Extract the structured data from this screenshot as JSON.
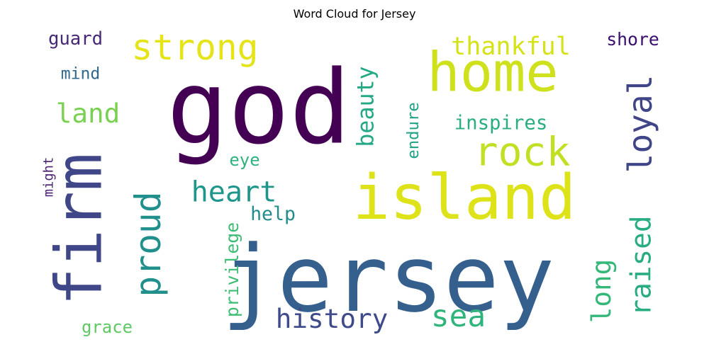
{
  "title": "Word Cloud for Jersey",
  "words": [
    {
      "text": "jersey",
      "color": "#35608d"
    },
    {
      "text": "god",
      "color": "#440154"
    },
    {
      "text": "home",
      "color": "#cfe11c"
    },
    {
      "text": "island",
      "color": "#dde318"
    },
    {
      "text": "firm",
      "color": "#3f4789"
    },
    {
      "text": "rock",
      "color": "#c2df23"
    },
    {
      "text": "strong",
      "color": "#e5e419"
    },
    {
      "text": "proud",
      "color": "#21908d"
    },
    {
      "text": "loyal",
      "color": "#404588"
    },
    {
      "text": "sea",
      "color": "#2fb47c"
    },
    {
      "text": "thankful",
      "color": "#d5e21a"
    },
    {
      "text": "heart",
      "color": "#1f968b"
    },
    {
      "text": "raised",
      "color": "#27ad81"
    },
    {
      "text": "history",
      "color": "#3e4a89"
    },
    {
      "text": "land",
      "color": "#7ad151"
    },
    {
      "text": "beauty",
      "color": "#22a884"
    },
    {
      "text": "long",
      "color": "#35b779"
    },
    {
      "text": "shore",
      "color": "#3b0f70"
    },
    {
      "text": "guard",
      "color": "#482878"
    },
    {
      "text": "inspires",
      "color": "#29af7f"
    },
    {
      "text": "mind",
      "color": "#31688e"
    },
    {
      "text": "endure",
      "color": "#1fa187"
    },
    {
      "text": "eye",
      "color": "#2db27d"
    },
    {
      "text": "might",
      "color": "#481f70"
    },
    {
      "text": "privilege",
      "color": "#3dbc74"
    },
    {
      "text": "help",
      "color": "#228c8d"
    },
    {
      "text": "grace",
      "color": "#5ec962"
    }
  ]
}
